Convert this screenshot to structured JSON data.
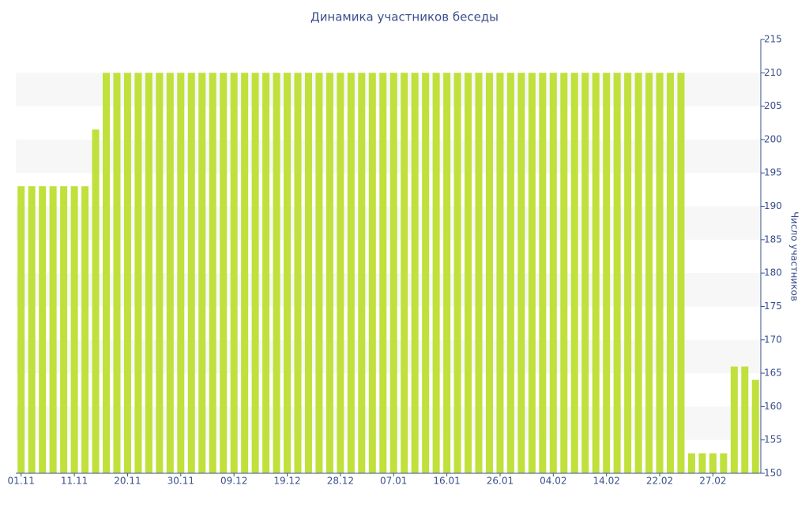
{
  "chart_data": {
    "type": "bar",
    "title": "Динамика участников беседы",
    "y_axis_label": "Число участников",
    "categories": [
      "01.11",
      null,
      null,
      null,
      null,
      "11.11",
      null,
      null,
      null,
      null,
      "20.11",
      null,
      null,
      null,
      null,
      "30.11",
      null,
      null,
      null,
      null,
      "09.12",
      null,
      null,
      null,
      null,
      "19.12",
      null,
      null,
      null,
      null,
      "28.12",
      null,
      null,
      null,
      null,
      "07.01",
      null,
      null,
      null,
      null,
      "16.01",
      null,
      null,
      null,
      null,
      "26.01",
      null,
      null,
      null,
      null,
      "04.02",
      null,
      null,
      null,
      null,
      "14.02",
      null,
      null,
      null,
      null,
      "22.02",
      null,
      null,
      null,
      null,
      "27.02",
      null,
      null,
      null,
      null
    ],
    "values": [
      193,
      193,
      193,
      193,
      193,
      193,
      193,
      201.5,
      210,
      210,
      210,
      210,
      210,
      210,
      210,
      210,
      210,
      210,
      210,
      210,
      210,
      210,
      210,
      210,
      210,
      210,
      210,
      210,
      210,
      210,
      210,
      210,
      210,
      210,
      210,
      210,
      210,
      210,
      210,
      210,
      210,
      210,
      210,
      210,
      210,
      210,
      210,
      210,
      210,
      210,
      210,
      210,
      210,
      210,
      210,
      210,
      210,
      210,
      210,
      210,
      210,
      210,
      210,
      153,
      153,
      153,
      153,
      166,
      166,
      164
    ],
    "color": "#c0e03c",
    "ylim": [
      150,
      215
    ],
    "yticks": [
      150,
      155,
      160,
      165,
      170,
      175,
      180,
      185,
      190,
      195,
      200,
      205,
      210,
      215
    ],
    "grid": true
  }
}
